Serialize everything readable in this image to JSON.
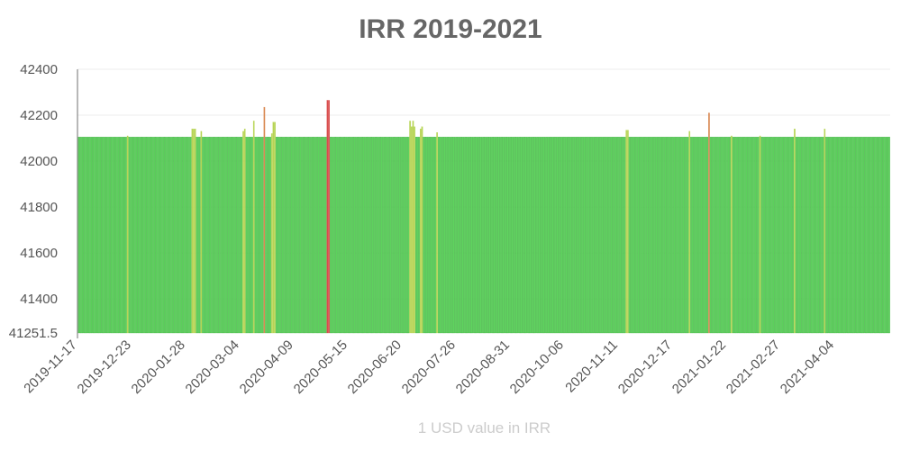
{
  "chart_data": {
    "type": "bar",
    "title": "IRR 2019-2021",
    "xlabel": "1 USD value in IRR",
    "ylabel": "",
    "ylim": [
      41251.5,
      42400
    ],
    "y_ticks": [
      42400,
      42200,
      42000,
      41800,
      41600,
      41400,
      41251.5
    ],
    "x_ticks": [
      "2019-11-17",
      "2019-12-23",
      "2020-01-28",
      "2020-03-04",
      "2020-04-09",
      "2020-05-15",
      "2020-06-20",
      "2020-07-26",
      "2020-08-31",
      "2020-10-06",
      "2020-11-11",
      "2020-12-17",
      "2021-01-22",
      "2021-02-27",
      "2021-04-04"
    ],
    "x_start": "2019-11-17",
    "x_end": "2021-05-10",
    "baseline_value": 42105,
    "spikes": [
      {
        "date": "2019-12-20",
        "value": 42110
      },
      {
        "date": "2020-01-24",
        "value": 42105
      },
      {
        "date": "2020-01-31",
        "value": 42105
      },
      {
        "date": "2020-02-01",
        "value": 42140
      },
      {
        "date": "2020-02-02",
        "value": 42140
      },
      {
        "date": "2020-02-03",
        "value": 42140
      },
      {
        "date": "2020-02-07",
        "value": 42130
      },
      {
        "date": "2020-02-28",
        "value": 42105
      },
      {
        "date": "2020-03-06",
        "value": 42130
      },
      {
        "date": "2020-03-07",
        "value": 42140
      },
      {
        "date": "2020-03-13",
        "value": 42175
      },
      {
        "date": "2020-03-20",
        "value": 42235
      },
      {
        "date": "2020-03-25",
        "value": 42120
      },
      {
        "date": "2020-03-26",
        "value": 42170
      },
      {
        "date": "2020-03-27",
        "value": 42170
      },
      {
        "date": "2020-04-29",
        "value": 42105
      },
      {
        "date": "2020-05-01",
        "value": 42265
      },
      {
        "date": "2020-05-02",
        "value": 42265
      },
      {
        "date": "2020-06-25",
        "value": 42175
      },
      {
        "date": "2020-06-26",
        "value": 42150
      },
      {
        "date": "2020-06-27",
        "value": 42175
      },
      {
        "date": "2020-06-28",
        "value": 42150
      },
      {
        "date": "2020-07-02",
        "value": 42140
      },
      {
        "date": "2020-07-03",
        "value": 42150
      },
      {
        "date": "2020-07-13",
        "value": 42125
      },
      {
        "date": "2020-11-16",
        "value": 42135
      },
      {
        "date": "2020-11-17",
        "value": 42135
      },
      {
        "date": "2020-12-28",
        "value": 42130
      },
      {
        "date": "2021-01-10",
        "value": 42210
      },
      {
        "date": "2021-01-25",
        "value": 42110
      },
      {
        "date": "2021-02-13",
        "value": 42110
      },
      {
        "date": "2021-03-08",
        "value": 42140
      },
      {
        "date": "2021-03-28",
        "value": 42140
      }
    ],
    "colors": {
      "base": "#5fd45f",
      "base_stroke": "#3fae3f",
      "mid": "#b7d455",
      "high": "#d98a55",
      "peak": "#d94c4c",
      "axis": "#888888",
      "grid": "#eeeeee"
    },
    "grid": true,
    "legend": "none"
  }
}
